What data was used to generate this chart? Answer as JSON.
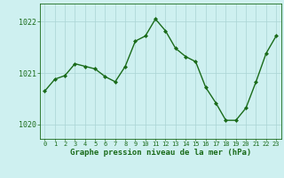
{
  "x": [
    0,
    1,
    2,
    3,
    4,
    5,
    6,
    7,
    8,
    9,
    10,
    11,
    12,
    13,
    14,
    15,
    16,
    17,
    18,
    19,
    20,
    21,
    22,
    23
  ],
  "y": [
    1020.65,
    1020.88,
    1020.95,
    1021.18,
    1021.13,
    1021.08,
    1020.93,
    1020.83,
    1021.13,
    1021.62,
    1021.72,
    1022.05,
    1021.82,
    1021.48,
    1021.32,
    1021.22,
    1020.72,
    1020.42,
    1020.08,
    1020.08,
    1020.32,
    1020.83,
    1021.38,
    1021.72
  ],
  "line_color": "#1a6b1a",
  "marker": "D",
  "marker_size": 2.0,
  "linewidth": 1.0,
  "bg_color": "#cef0f0",
  "grid_color": "#aad4d4",
  "yticks": [
    1020,
    1021,
    1022
  ],
  "xticks": [
    0,
    1,
    2,
    3,
    4,
    5,
    6,
    7,
    8,
    9,
    10,
    11,
    12,
    13,
    14,
    15,
    16,
    17,
    18,
    19,
    20,
    21,
    22,
    23
  ],
  "ylim": [
    1019.72,
    1022.35
  ],
  "xlim": [
    -0.5,
    23.5
  ],
  "xlabel": "Graphe pression niveau de la mer (hPa)",
  "xlabel_color": "#1a6b1a",
  "xlabel_fontsize": 6.5,
  "tick_color": "#1a6b1a",
  "ytick_fontsize": 6.0,
  "xtick_fontsize": 5.0,
  "border_color": "#1a6b1a"
}
